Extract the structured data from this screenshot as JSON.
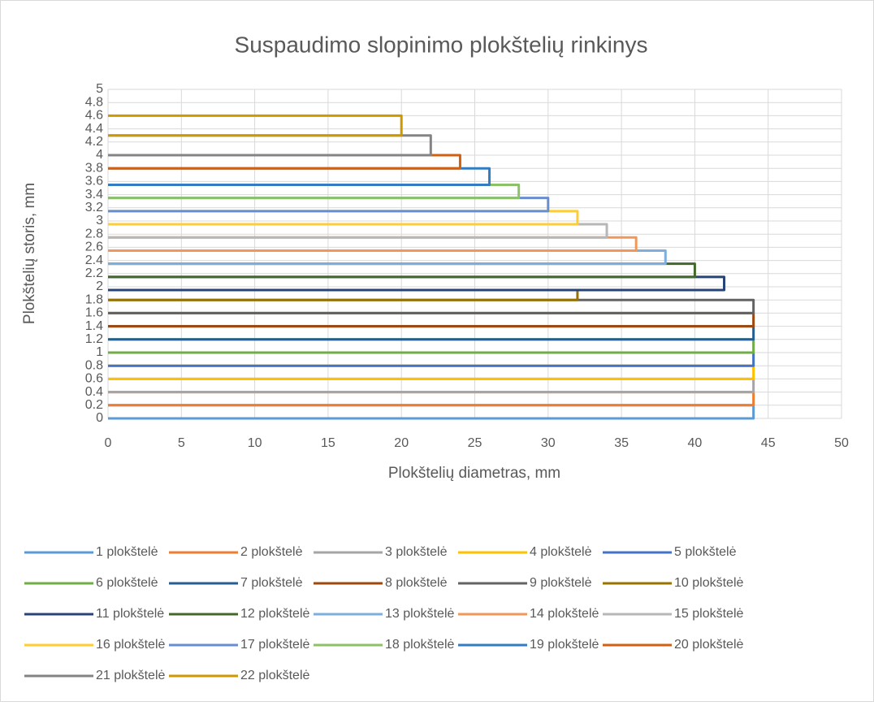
{
  "chart_data": {
    "type": "line",
    "title": "Suspaudimo slopinimo plokštelių rinkinys",
    "x_label": "Plokštelių diametras, mm",
    "y_label": "Plokštelių storis, mm",
    "xlim": [
      0,
      50
    ],
    "xticks": [
      0,
      5,
      10,
      15,
      20,
      25,
      30,
      35,
      40,
      45,
      50
    ],
    "ylim": [
      0,
      5
    ],
    "yticks": [
      0,
      0.2,
      0.4,
      0.6,
      0.8,
      1,
      1.2,
      1.4,
      1.6,
      1.8,
      2,
      2.2,
      2.4,
      2.6,
      2.8,
      3,
      3.2,
      3.4,
      3.6,
      3.8,
      4,
      4.2,
      4.4,
      4.6,
      4.8,
      5
    ],
    "grid": true,
    "legend": "bottom",
    "series": [
      {
        "name": "1 plokštelė",
        "color": "#5b9bd5",
        "x": [
          0,
          44,
          44,
          0
        ],
        "values": [
          0,
          0,
          0.2,
          0.2
        ]
      },
      {
        "name": "2 plokštelė",
        "color": "#ed7d31",
        "x": [
          0,
          44,
          44,
          0
        ],
        "values": [
          0.2,
          0.2,
          0.4,
          0.4
        ]
      },
      {
        "name": "3 plokštelė",
        "color": "#a5a5a5",
        "x": [
          0,
          44,
          44,
          0
        ],
        "values": [
          0.4,
          0.4,
          0.6,
          0.6
        ]
      },
      {
        "name": "4 plokštelė",
        "color": "#ffc000",
        "x": [
          0,
          44,
          44,
          0
        ],
        "values": [
          0.6,
          0.6,
          0.8,
          0.8
        ]
      },
      {
        "name": "5 plokštelė",
        "color": "#4472c4",
        "x": [
          0,
          44,
          44,
          0
        ],
        "values": [
          0.8,
          0.8,
          1,
          1
        ]
      },
      {
        "name": "6 plokštelė",
        "color": "#70ad47",
        "x": [
          0,
          44,
          44,
          0
        ],
        "values": [
          1,
          1,
          1.2,
          1.2
        ]
      },
      {
        "name": "7 plokštelė",
        "color": "#255e91",
        "x": [
          0,
          44,
          44,
          0
        ],
        "values": [
          1.2,
          1.2,
          1.4,
          1.4
        ]
      },
      {
        "name": "8 plokštelė",
        "color": "#9e480e",
        "x": [
          0,
          44,
          44,
          0
        ],
        "values": [
          1.4,
          1.4,
          1.6,
          1.6
        ]
      },
      {
        "name": "9 plokštelė",
        "color": "#636363",
        "x": [
          0,
          44,
          44,
          0
        ],
        "values": [
          1.6,
          1.6,
          1.8,
          1.8
        ]
      },
      {
        "name": "10 plokštelė",
        "color": "#997300",
        "x": [
          0,
          32,
          32,
          0
        ],
        "values": [
          1.8,
          1.8,
          1.95,
          1.95
        ]
      },
      {
        "name": "11 plokštelė",
        "color": "#264478",
        "x": [
          0,
          42,
          42,
          0
        ],
        "values": [
          1.95,
          1.95,
          2.15,
          2.15
        ]
      },
      {
        "name": "12 plokštelė",
        "color": "#43682b",
        "x": [
          0,
          40,
          40,
          0
        ],
        "values": [
          2.15,
          2.15,
          2.35,
          2.35
        ]
      },
      {
        "name": "13 plokštelė",
        "color": "#7cafdd",
        "x": [
          0,
          38,
          38,
          0
        ],
        "values": [
          2.35,
          2.35,
          2.55,
          2.55
        ]
      },
      {
        "name": "14 plokštelė",
        "color": "#f1975a",
        "x": [
          0,
          36,
          36,
          0
        ],
        "values": [
          2.55,
          2.55,
          2.75,
          2.75
        ]
      },
      {
        "name": "15 plokštelė",
        "color": "#b7b7b7",
        "x": [
          0,
          34,
          34,
          0
        ],
        "values": [
          2.75,
          2.75,
          2.95,
          2.95
        ]
      },
      {
        "name": "16 plokštelė",
        "color": "#ffcd33",
        "x": [
          0,
          32,
          32,
          0
        ],
        "values": [
          2.95,
          2.95,
          3.15,
          3.15
        ]
      },
      {
        "name": "17 plokštelė",
        "color": "#698ed0",
        "x": [
          0,
          30,
          30,
          0
        ],
        "values": [
          3.15,
          3.15,
          3.35,
          3.35
        ]
      },
      {
        "name": "18 plokštelė",
        "color": "#8cc168",
        "x": [
          0,
          28,
          28,
          0
        ],
        "values": [
          3.35,
          3.35,
          3.55,
          3.55
        ]
      },
      {
        "name": "19 plokštelė",
        "color": "#327dc2",
        "x": [
          0,
          26,
          26,
          0
        ],
        "values": [
          3.55,
          3.55,
          3.8,
          3.8
        ]
      },
      {
        "name": "20 plokštelė",
        "color": "#d26012",
        "x": [
          0,
          24,
          24,
          0
        ],
        "values": [
          3.8,
          3.8,
          4,
          4
        ]
      },
      {
        "name": "21 plokštelė",
        "color": "#848484",
        "x": [
          0,
          22,
          22,
          0
        ],
        "values": [
          4,
          4,
          4.3,
          4.3
        ]
      },
      {
        "name": "22 plokštelė",
        "color": "#cc9a00",
        "x": [
          0,
          20,
          20,
          0
        ],
        "values": [
          4.3,
          4.3,
          4.6,
          4.6
        ]
      }
    ]
  }
}
